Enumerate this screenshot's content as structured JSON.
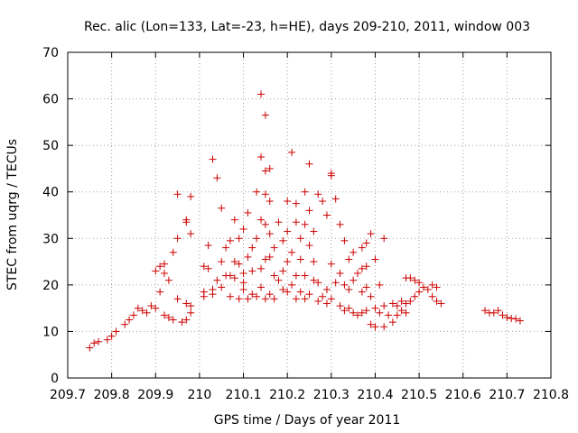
{
  "chart_data": {
    "type": "scatter",
    "title": "Rec. alic (Lon=133, Lat=-23, h=HE), days 209-210, 2011, window 003",
    "xlabel": "GPS time / Days of year 2011",
    "ylabel": "STEC from uqrg / TECUs",
    "xlim": [
      209.7,
      210.8
    ],
    "ylim": [
      0,
      70
    ],
    "xticks": [
      209.7,
      209.8,
      209.9,
      210,
      210.1,
      210.2,
      210.3,
      210.4,
      210.5,
      210.6,
      210.7,
      210.8
    ],
    "xtick_labels": [
      "209.7",
      "209.8",
      "209.9",
      "210",
      "210.1",
      "210.2",
      "210.3",
      "210.4",
      "210.5",
      "210.6",
      "210.7",
      "210.8"
    ],
    "yticks": [
      0,
      10,
      20,
      30,
      40,
      50,
      60,
      70
    ],
    "ytick_labels": [
      "0",
      "10",
      "20",
      "30",
      "40",
      "50",
      "60",
      "70"
    ],
    "grid": true,
    "marker": "+",
    "color": "#cc0000",
    "series": [
      {
        "points": [
          [
            209.75,
            6.5
          ],
          [
            209.76,
            7.5
          ],
          [
            209.77,
            7.8
          ],
          [
            209.79,
            8.2
          ],
          [
            209.8,
            9.0
          ],
          [
            209.81,
            10.0
          ],
          [
            209.83,
            11.5
          ],
          [
            209.84,
            12.5
          ],
          [
            209.85,
            13.5
          ],
          [
            209.86,
            15.0
          ],
          [
            209.87,
            14.5
          ],
          [
            209.88,
            14.0
          ],
          [
            209.89,
            15.5
          ],
          [
            209.9,
            15.0
          ],
          [
            209.9,
            23.0
          ],
          [
            209.91,
            18.5
          ],
          [
            209.91,
            24.0
          ],
          [
            209.92,
            24.5
          ],
          [
            209.92,
            22.5
          ],
          [
            209.93,
            21.0
          ],
          [
            209.92,
            13.5
          ],
          [
            209.93,
            13.0
          ],
          [
            209.94,
            12.5
          ],
          [
            209.94,
            27.0
          ],
          [
            209.95,
            17.0
          ],
          [
            209.95,
            30.0
          ],
          [
            209.95,
            39.5
          ],
          [
            209.96,
            12.0
          ],
          [
            209.97,
            34.0
          ],
          [
            209.97,
            33.5
          ],
          [
            209.97,
            12.5
          ],
          [
            209.97,
            16.0
          ],
          [
            209.98,
            15.5
          ],
          [
            209.98,
            14.0
          ],
          [
            209.98,
            31.0
          ],
          [
            209.98,
            39.0
          ],
          [
            210.01,
            17.5
          ],
          [
            210.01,
            18.5
          ],
          [
            210.01,
            24.0
          ],
          [
            210.02,
            23.5
          ],
          [
            210.02,
            28.5
          ],
          [
            210.03,
            47.0
          ],
          [
            210.03,
            18.0
          ],
          [
            210.03,
            19.0
          ],
          [
            210.04,
            43.0
          ],
          [
            210.04,
            21.0
          ],
          [
            210.05,
            19.5
          ],
          [
            210.05,
            25.0
          ],
          [
            210.05,
            36.5
          ],
          [
            210.06,
            22.0
          ],
          [
            210.06,
            28.0
          ],
          [
            210.07,
            17.5
          ],
          [
            210.07,
            22.0
          ],
          [
            210.07,
            29.5
          ],
          [
            210.08,
            21.5
          ],
          [
            210.08,
            25.0
          ],
          [
            210.08,
            34.0
          ],
          [
            210.09,
            17.0
          ],
          [
            210.09,
            24.5
          ],
          [
            210.09,
            30.0
          ],
          [
            210.1,
            19.0
          ],
          [
            210.1,
            22.5
          ],
          [
            210.1,
            32.0
          ],
          [
            210.1,
            20.5
          ],
          [
            210.11,
            17.0
          ],
          [
            210.11,
            26.0
          ],
          [
            210.11,
            35.5
          ],
          [
            210.12,
            18.0
          ],
          [
            210.12,
            23.0
          ],
          [
            210.12,
            28.0
          ],
          [
            210.13,
            17.5
          ],
          [
            210.13,
            30.0
          ],
          [
            210.13,
            40.0
          ],
          [
            210.14,
            19.5
          ],
          [
            210.14,
            23.5
          ],
          [
            210.14,
            34.0
          ],
          [
            210.14,
            47.5
          ],
          [
            210.14,
            61.0
          ],
          [
            210.15,
            17.0
          ],
          [
            210.15,
            25.5
          ],
          [
            210.15,
            33.0
          ],
          [
            210.15,
            39.5
          ],
          [
            210.15,
            56.5
          ],
          [
            210.15,
            44.5
          ],
          [
            210.16,
            38.0
          ],
          [
            210.16,
            45.0
          ],
          [
            210.16,
            31.0
          ],
          [
            210.16,
            26.0
          ],
          [
            210.16,
            18.0
          ],
          [
            210.17,
            17.0
          ],
          [
            210.17,
            22.0
          ],
          [
            210.17,
            28.0
          ],
          [
            210.18,
            21.0
          ],
          [
            210.18,
            33.5
          ],
          [
            210.19,
            23.0
          ],
          [
            210.19,
            19.0
          ],
          [
            210.19,
            29.5
          ],
          [
            210.2,
            18.5
          ],
          [
            210.2,
            25.0
          ],
          [
            210.2,
            31.5
          ],
          [
            210.2,
            38.0
          ],
          [
            210.21,
            48.5
          ],
          [
            210.21,
            20.0
          ],
          [
            210.21,
            27.0
          ],
          [
            210.22,
            17.0
          ],
          [
            210.22,
            22.0
          ],
          [
            210.22,
            33.5
          ],
          [
            210.22,
            37.5
          ],
          [
            210.23,
            30.0
          ],
          [
            210.23,
            25.5
          ],
          [
            210.23,
            18.5
          ],
          [
            210.24,
            40.0
          ],
          [
            210.24,
            33.0
          ],
          [
            210.24,
            22.0
          ],
          [
            210.24,
            17.0
          ],
          [
            210.25,
            46.0
          ],
          [
            210.25,
            36.0
          ],
          [
            210.25,
            28.5
          ],
          [
            210.25,
            18.0
          ],
          [
            210.26,
            31.5
          ],
          [
            210.26,
            25.0
          ],
          [
            210.26,
            21.0
          ],
          [
            210.27,
            39.5
          ],
          [
            210.27,
            16.5
          ],
          [
            210.27,
            20.5
          ],
          [
            210.28,
            38.0
          ],
          [
            210.28,
            17.5
          ],
          [
            210.29,
            19.0
          ],
          [
            210.29,
            35.0
          ],
          [
            210.29,
            16.0
          ],
          [
            210.3,
            43.5
          ],
          [
            210.3,
            44.0
          ],
          [
            210.3,
            24.5
          ],
          [
            210.3,
            17.0
          ],
          [
            210.31,
            38.5
          ],
          [
            210.31,
            20.5
          ],
          [
            210.32,
            33.0
          ],
          [
            210.32,
            22.5
          ],
          [
            210.32,
            15.5
          ],
          [
            210.33,
            29.5
          ],
          [
            210.33,
            20.0
          ],
          [
            210.33,
            14.5
          ],
          [
            210.34,
            25.5
          ],
          [
            210.34,
            19.0
          ],
          [
            210.34,
            15.0
          ],
          [
            210.35,
            27.0
          ],
          [
            210.35,
            21.0
          ],
          [
            210.35,
            14.0
          ],
          [
            210.36,
            22.5
          ],
          [
            210.36,
            13.5
          ],
          [
            210.37,
            28.0
          ],
          [
            210.37,
            23.5
          ],
          [
            210.37,
            18.5
          ],
          [
            210.37,
            14.0
          ],
          [
            210.38,
            29.0
          ],
          [
            210.38,
            24.0
          ],
          [
            210.38,
            19.5
          ],
          [
            210.38,
            14.5
          ],
          [
            210.39,
            31.0
          ],
          [
            210.39,
            17.5
          ],
          [
            210.39,
            11.5
          ],
          [
            210.4,
            25.5
          ],
          [
            210.4,
            15.0
          ],
          [
            210.4,
            11.0
          ],
          [
            210.41,
            20.0
          ],
          [
            210.41,
            14.0
          ],
          [
            210.42,
            30.0
          ],
          [
            210.42,
            15.5
          ],
          [
            210.42,
            11.0
          ],
          [
            210.43,
            13.5
          ],
          [
            210.44,
            16.0
          ],
          [
            210.44,
            12.0
          ],
          [
            210.45,
            15.5
          ],
          [
            210.45,
            13.5
          ],
          [
            210.46,
            16.5
          ],
          [
            210.46,
            14.5
          ],
          [
            210.47,
            21.5
          ],
          [
            210.47,
            16.0
          ],
          [
            210.47,
            14.0
          ],
          [
            210.48,
            21.5
          ],
          [
            210.48,
            16.5
          ],
          [
            210.49,
            21.0
          ],
          [
            210.49,
            17.5
          ],
          [
            210.5,
            20.5
          ],
          [
            210.5,
            18.5
          ],
          [
            210.51,
            19.5
          ],
          [
            210.52,
            19.0
          ],
          [
            210.53,
            20.0
          ],
          [
            210.53,
            17.5
          ],
          [
            210.54,
            19.5
          ],
          [
            210.54,
            16.5
          ],
          [
            210.55,
            16.0
          ],
          [
            210.65,
            14.5
          ],
          [
            210.66,
            14.0
          ],
          [
            210.67,
            14.0
          ],
          [
            210.68,
            14.5
          ],
          [
            210.69,
            13.5
          ],
          [
            210.7,
            13.0
          ],
          [
            210.71,
            12.8
          ],
          [
            210.72,
            12.7
          ],
          [
            210.73,
            12.3
          ]
        ]
      }
    ]
  }
}
